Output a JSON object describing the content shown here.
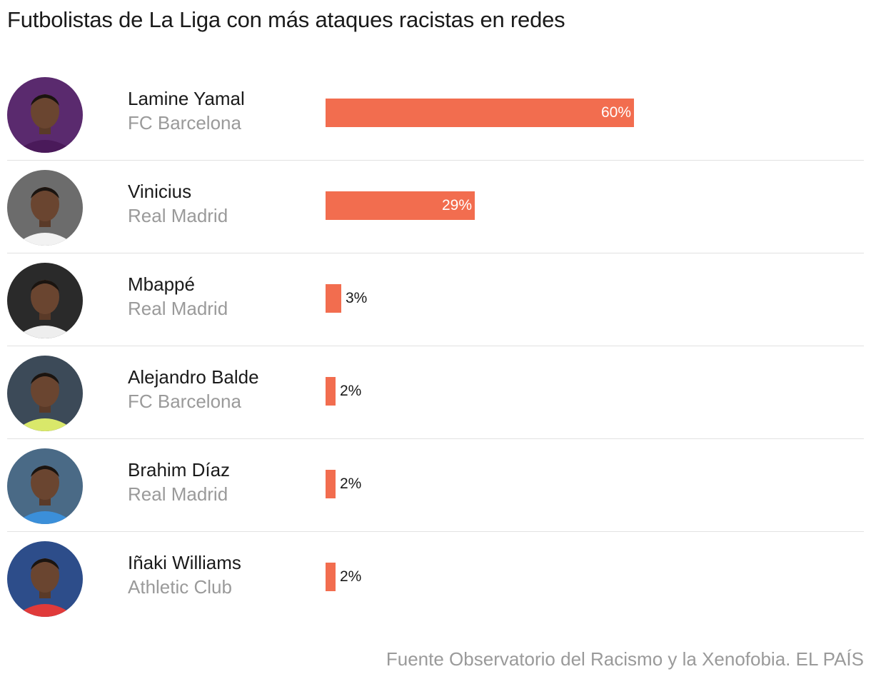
{
  "chart_data": {
    "type": "bar",
    "orientation": "horizontal",
    "title": "Futbolistas de La Liga con más ataques racistas en redes",
    "source": "Fuente Observatorio del Racismo y la Xenofobia. EL PAÍS",
    "categories": [
      "Lamine Yamal",
      "Vinicius",
      "Mbappé",
      "Alejandro Balde",
      "Brahim Díaz",
      "Iñaki Williams"
    ],
    "teams": [
      "FC Barcelona",
      "Real Madrid",
      "Real Madrid",
      "FC Barcelona",
      "Real Madrid",
      "Athletic Club"
    ],
    "values": [
      60,
      29,
      3,
      2,
      2,
      2
    ],
    "value_labels": [
      "60%",
      "29%",
      "3%",
      "2%",
      "2%",
      "2%"
    ],
    "unit": "%",
    "bar_color": "#f26d4f",
    "xlim": [
      0,
      100
    ],
    "grid": false
  }
}
